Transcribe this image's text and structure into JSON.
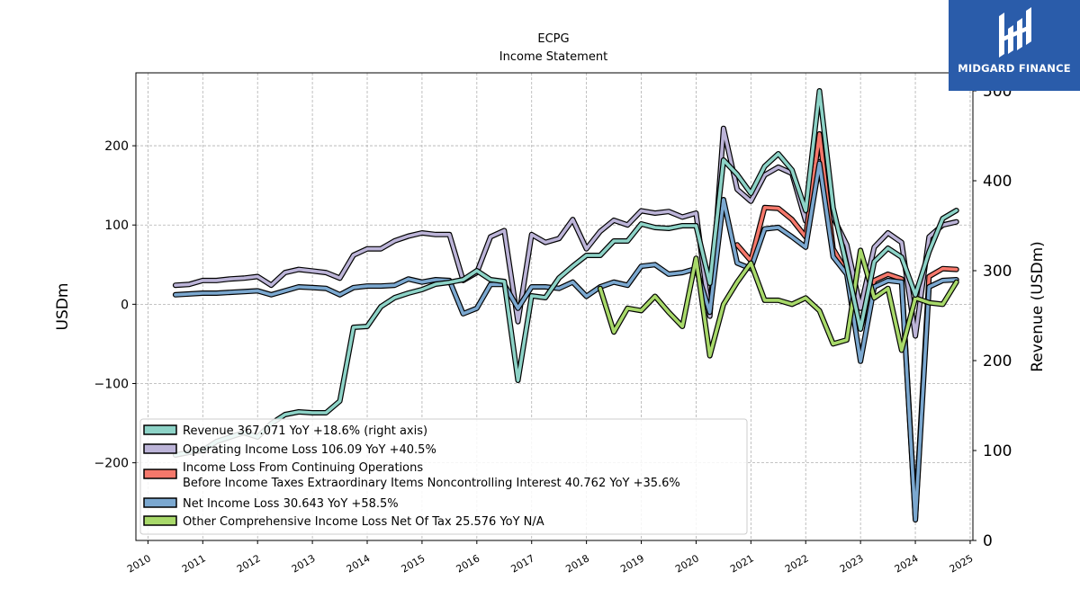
{
  "header": {
    "title": "ECPG",
    "subtitle": "Income Statement"
  },
  "brand": {
    "name": "MIDGARD FINANCE",
    "color": "#2a5caa"
  },
  "chart_data": {
    "type": "line",
    "title": "ECPG",
    "subtitle": "Income Statement",
    "ylabel_left": "USDm",
    "ylabel_right": "Revenue (USDm)",
    "x_ticks": [
      "2010",
      "2011",
      "2012",
      "2013",
      "2014",
      "2015",
      "2016",
      "2017",
      "2018",
      "2019",
      "2020",
      "2021",
      "2022",
      "2023",
      "2024",
      "2025"
    ],
    "y_left_ticks": [
      -200,
      -100,
      0,
      100,
      200
    ],
    "y_right_ticks": [
      0,
      100,
      200,
      300,
      400,
      500
    ],
    "xlim": [
      2009.78,
      2025.05
    ],
    "ylim_left": [
      -298,
      292
    ],
    "ylim_right": [
      0,
      520
    ],
    "grid": true,
    "legend_position": "lower-left",
    "series": [
      {
        "name": "Operating Income Loss",
        "legend": "Operating Income Loss  106.09 YoY +40.5%",
        "color": "#bcb4d8",
        "axis": "left",
        "points": [
          [
            2010.5,
            24
          ],
          [
            2010.75,
            25
          ],
          [
            2011.0,
            30
          ],
          [
            2011.25,
            30
          ],
          [
            2011.5,
            32
          ],
          [
            2011.75,
            33
          ],
          [
            2012.0,
            35
          ],
          [
            2012.25,
            24
          ],
          [
            2012.5,
            40
          ],
          [
            2012.75,
            44
          ],
          [
            2013.0,
            42
          ],
          [
            2013.25,
            40
          ],
          [
            2013.5,
            33
          ],
          [
            2013.75,
            62
          ],
          [
            2014.0,
            70
          ],
          [
            2014.25,
            70
          ],
          [
            2014.5,
            80
          ],
          [
            2014.75,
            86
          ],
          [
            2015.0,
            90
          ],
          [
            2015.25,
            88
          ],
          [
            2015.5,
            88
          ],
          [
            2015.75,
            30
          ],
          [
            2016.0,
            40
          ],
          [
            2016.25,
            85
          ],
          [
            2016.5,
            93
          ],
          [
            2016.75,
            -22
          ],
          [
            2017.0,
            88
          ],
          [
            2017.25,
            78
          ],
          [
            2017.5,
            83
          ],
          [
            2017.75,
            107
          ],
          [
            2018.0,
            70
          ],
          [
            2018.25,
            92
          ],
          [
            2018.5,
            106
          ],
          [
            2018.75,
            100
          ],
          [
            2019.0,
            118
          ],
          [
            2019.25,
            115
          ],
          [
            2019.5,
            117
          ],
          [
            2019.75,
            110
          ],
          [
            2020.0,
            115
          ],
          [
            2020.25,
            -15
          ],
          [
            2020.5,
            222
          ],
          [
            2020.75,
            145
          ],
          [
            2021.0,
            130
          ],
          [
            2021.25,
            163
          ],
          [
            2021.5,
            173
          ],
          [
            2021.75,
            165
          ],
          [
            2022.0,
            105
          ],
          [
            2022.25,
            180
          ],
          [
            2022.5,
            110
          ],
          [
            2022.75,
            75
          ],
          [
            2023.0,
            -5
          ],
          [
            2023.25,
            72
          ],
          [
            2023.5,
            90
          ],
          [
            2023.75,
            78
          ],
          [
            2024.0,
            -40
          ],
          [
            2024.25,
            85
          ],
          [
            2024.5,
            100
          ],
          [
            2024.75,
            104
          ]
        ]
      },
      {
        "name": "Income Loss From Continuing Operations Before Income Taxes Extraordinary Items Noncontrolling Interest",
        "legend": "Income Loss From Continuing Operations\nBefore Income Taxes Extraordinary Items Noncontrolling Interest  40.762 YoY +35.6%",
        "color": "#f5786b",
        "axis": "left",
        "points": [
          [
            2020.75,
            75
          ],
          [
            2021.0,
            55
          ],
          [
            2021.25,
            122
          ],
          [
            2021.5,
            121
          ],
          [
            2021.75,
            107
          ],
          [
            2022.0,
            85
          ],
          [
            2022.25,
            215
          ],
          [
            2022.5,
            70
          ],
          [
            2022.75,
            40
          ],
          [
            2023.0,
            -30
          ],
          [
            2023.25,
            30
          ],
          [
            2023.5,
            38
          ],
          [
            2023.75,
            32
          ],
          [
            2024.0,
            -270
          ],
          [
            2024.25,
            35
          ],
          [
            2024.5,
            45
          ],
          [
            2024.75,
            44
          ]
        ]
      },
      {
        "name": "Net Income Loss",
        "legend": "Net Income Loss  30.643 YoY +58.5%",
        "color": "#7ba8d0",
        "axis": "left",
        "points": [
          [
            2010.5,
            12
          ],
          [
            2010.75,
            13
          ],
          [
            2011.0,
            14
          ],
          [
            2011.25,
            14
          ],
          [
            2011.5,
            15
          ],
          [
            2011.75,
            16
          ],
          [
            2012.0,
            17
          ],
          [
            2012.25,
            12
          ],
          [
            2012.5,
            17
          ],
          [
            2012.75,
            22
          ],
          [
            2013.0,
            21
          ],
          [
            2013.25,
            20
          ],
          [
            2013.5,
            12
          ],
          [
            2013.75,
            21
          ],
          [
            2014.0,
            23
          ],
          [
            2014.25,
            23
          ],
          [
            2014.5,
            24
          ],
          [
            2014.75,
            32
          ],
          [
            2015.0,
            28
          ],
          [
            2015.25,
            31
          ],
          [
            2015.5,
            30
          ],
          [
            2015.75,
            -12
          ],
          [
            2016.0,
            -5
          ],
          [
            2016.25,
            25
          ],
          [
            2016.5,
            25
          ],
          [
            2016.75,
            -5
          ],
          [
            2017.0,
            22
          ],
          [
            2017.25,
            22
          ],
          [
            2017.5,
            20
          ],
          [
            2017.75,
            28
          ],
          [
            2018.0,
            10
          ],
          [
            2018.25,
            22
          ],
          [
            2018.5,
            28
          ],
          [
            2018.75,
            24
          ],
          [
            2019.0,
            48
          ],
          [
            2019.25,
            50
          ],
          [
            2019.5,
            38
          ],
          [
            2019.75,
            40
          ],
          [
            2020.0,
            45
          ],
          [
            2020.25,
            -10
          ],
          [
            2020.5,
            132
          ],
          [
            2020.75,
            52
          ],
          [
            2021.0,
            45
          ],
          [
            2021.25,
            95
          ],
          [
            2021.5,
            97
          ],
          [
            2021.75,
            85
          ],
          [
            2022.0,
            72
          ],
          [
            2022.25,
            178
          ],
          [
            2022.5,
            60
          ],
          [
            2022.75,
            38
          ],
          [
            2023.0,
            -72
          ],
          [
            2023.25,
            22
          ],
          [
            2023.5,
            30
          ],
          [
            2023.75,
            28
          ],
          [
            2024.0,
            -272
          ],
          [
            2024.25,
            22
          ],
          [
            2024.5,
            30
          ],
          [
            2024.75,
            31
          ]
        ]
      },
      {
        "name": "Other Comprehensive Income Loss Net Of Tax",
        "legend": "Other Comprehensive Income Loss Net Of Tax  25.576 YoY N/A",
        "color": "#a8d96a",
        "axis": "left",
        "points": [
          [
            2018.25,
            20
          ],
          [
            2018.5,
            -35
          ],
          [
            2018.75,
            -5
          ],
          [
            2019.0,
            -8
          ],
          [
            2019.25,
            10
          ],
          [
            2019.5,
            -10
          ],
          [
            2019.75,
            -28
          ],
          [
            2020.0,
            58
          ],
          [
            2020.25,
            -65
          ],
          [
            2020.5,
            0
          ],
          [
            2020.75,
            28
          ],
          [
            2021.0,
            52
          ],
          [
            2021.25,
            5
          ],
          [
            2021.5,
            5
          ],
          [
            2021.75,
            0
          ],
          [
            2022.0,
            8
          ],
          [
            2022.25,
            -8
          ],
          [
            2022.5,
            -50
          ],
          [
            2022.75,
            -45
          ],
          [
            2023.0,
            68
          ],
          [
            2023.25,
            8
          ],
          [
            2023.5,
            20
          ],
          [
            2023.75,
            -58
          ],
          [
            2024.0,
            8
          ],
          [
            2024.25,
            2
          ],
          [
            2024.5,
            0
          ],
          [
            2024.75,
            28
          ]
        ]
      },
      {
        "name": "Revenue",
        "legend": "Revenue  367.071 YoY +18.6% (right axis)",
        "color": "#8dd3c7",
        "axis": "right",
        "points": [
          [
            2010.5,
            95
          ],
          [
            2010.75,
            98
          ],
          [
            2011.0,
            100
          ],
          [
            2011.25,
            110
          ],
          [
            2011.5,
            115
          ],
          [
            2011.75,
            120
          ],
          [
            2012.0,
            115
          ],
          [
            2012.25,
            130
          ],
          [
            2012.5,
            140
          ],
          [
            2012.75,
            143
          ],
          [
            2013.0,
            142
          ],
          [
            2013.25,
            142
          ],
          [
            2013.5,
            155
          ],
          [
            2013.75,
            237
          ],
          [
            2014.0,
            238
          ],
          [
            2014.25,
            260
          ],
          [
            2014.5,
            270
          ],
          [
            2014.75,
            275
          ],
          [
            2015.0,
            279
          ],
          [
            2015.25,
            285
          ],
          [
            2015.5,
            287
          ],
          [
            2015.75,
            290
          ],
          [
            2016.0,
            300
          ],
          [
            2016.25,
            290
          ],
          [
            2016.5,
            288
          ],
          [
            2016.75,
            178
          ],
          [
            2017.0,
            272
          ],
          [
            2017.25,
            270
          ],
          [
            2017.5,
            292
          ],
          [
            2017.75,
            305
          ],
          [
            2018.0,
            317
          ],
          [
            2018.25,
            317
          ],
          [
            2018.5,
            333
          ],
          [
            2018.75,
            333
          ],
          [
            2019.0,
            352
          ],
          [
            2019.25,
            348
          ],
          [
            2019.5,
            347
          ],
          [
            2019.75,
            350
          ],
          [
            2020.0,
            350
          ],
          [
            2020.25,
            286
          ],
          [
            2020.5,
            423
          ],
          [
            2020.75,
            407
          ],
          [
            2021.0,
            386
          ],
          [
            2021.25,
            416
          ],
          [
            2021.5,
            430
          ],
          [
            2021.75,
            412
          ],
          [
            2022.0,
            367
          ],
          [
            2022.25,
            500
          ],
          [
            2022.5,
            370
          ],
          [
            2022.75,
            305
          ],
          [
            2023.0,
            235
          ],
          [
            2023.25,
            310
          ],
          [
            2023.5,
            325
          ],
          [
            2023.75,
            315
          ],
          [
            2024.0,
            273
          ],
          [
            2024.25,
            321
          ],
          [
            2024.5,
            358
          ],
          [
            2024.75,
            367
          ]
        ]
      }
    ],
    "draw_order": [
      0,
      1,
      2,
      3,
      4
    ]
  }
}
